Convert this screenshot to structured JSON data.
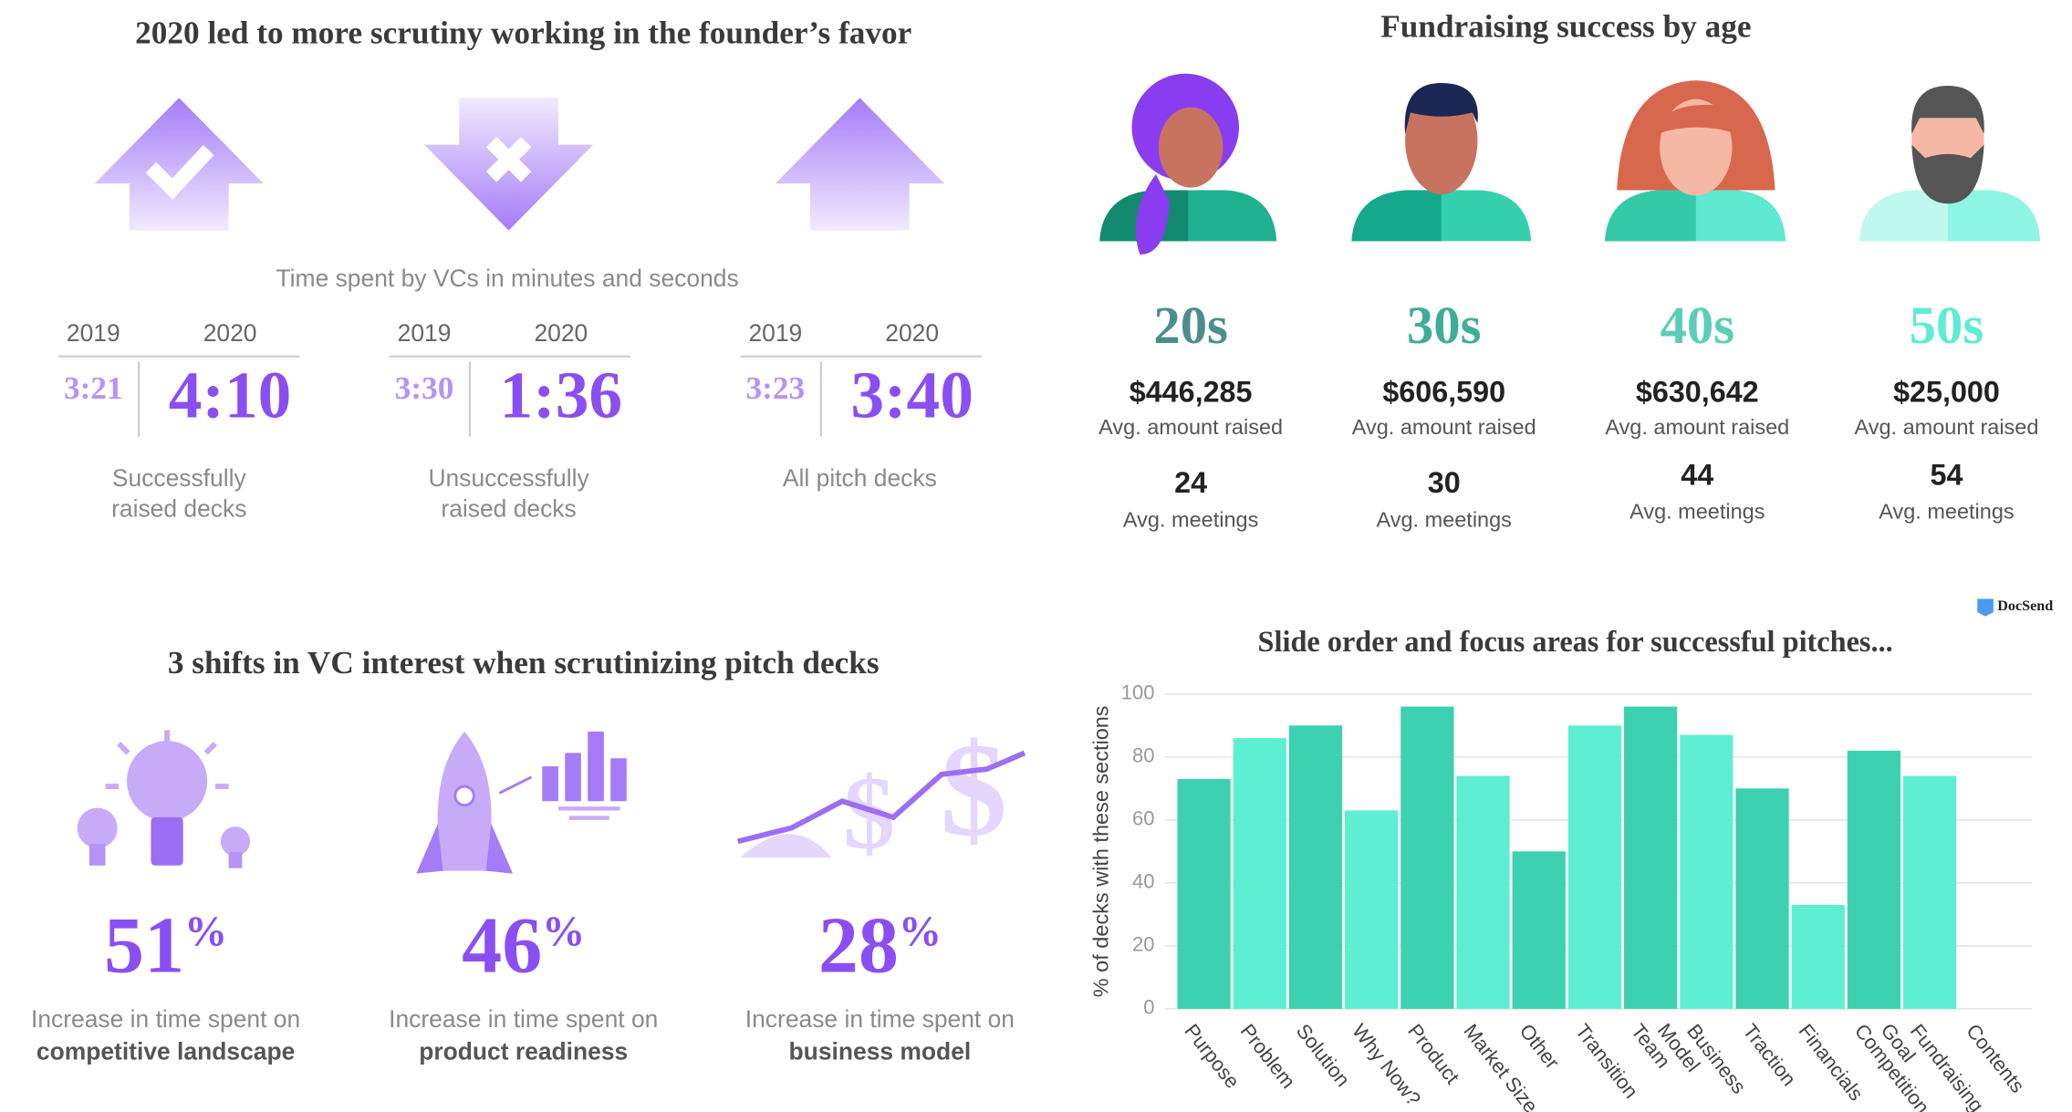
{
  "scrutiny": {
    "title": "2020 led to more scrutiny working in the founder’s favor",
    "subtitle": "Time spent by VCs in minutes and seconds",
    "groups": [
      {
        "year_a": "2019",
        "year_b": "2020",
        "time_a": "3:21",
        "time_b": "4:10",
        "label": [
          "Successfully",
          "raised decks"
        ]
      },
      {
        "year_a": "2019",
        "year_b": "2020",
        "time_a": "3:30",
        "time_b": "1:36",
        "label": [
          "Unsuccessfully",
          "raised decks"
        ]
      },
      {
        "year_a": "2019",
        "year_b": "2020",
        "time_a": "3:23",
        "time_b": "3:40",
        "label": [
          "All pitch decks"
        ]
      }
    ]
  },
  "ages": {
    "title": "Fundraising success by age",
    "groups": [
      {
        "age": "20s",
        "amount": "$446,285",
        "amount_label": "Avg. amount raised",
        "meetings": "24",
        "meetings_label": "Avg. meetings"
      },
      {
        "age": "30s",
        "amount": "$606,590",
        "amount_label": "Avg. amount raised",
        "meetings": "30",
        "meetings_label": "Avg. meetings"
      },
      {
        "age": "40s",
        "amount": "$630,642",
        "amount_label": "Avg. amount raised",
        "meetings": "44",
        "meetings_label": "Avg. meetings"
      },
      {
        "age": "50s",
        "amount": "$25,000",
        "amount_label": "Avg. amount raised",
        "meetings": "54",
        "meetings_label": "Avg. meetings"
      }
    ]
  },
  "shifts": {
    "title": "3 shifts in VC interest when scrutinizing pitch decks",
    "items": [
      {
        "value": "51",
        "unit": "%",
        "text": "Increase in time spent on",
        "focus": "competitive landscape"
      },
      {
        "value": "46",
        "unit": "%",
        "text": "Increase in time spent on",
        "focus": "product readiness"
      },
      {
        "value": "28",
        "unit": "%",
        "text": "Increase in time spent on",
        "focus": "business model"
      }
    ]
  },
  "logo": "DocSend",
  "chart_data": {
    "type": "bar",
    "title": "Slide order and focus areas for successful pitches...",
    "y_label": "% of decks with these sections",
    "categories": [
      "Purpose",
      "Problem",
      "Solution",
      "Why Now?",
      "Product",
      "Market Size",
      "Other",
      "Transition",
      "Team",
      "Business Model",
      "Traction",
      "Financials",
      "Competition",
      "Fundraising Goal",
      "Contents"
    ],
    "values": [
      73,
      86,
      90,
      63,
      96,
      74,
      50,
      90,
      96,
      87,
      70,
      33,
      82,
      74,
      0
    ],
    "colors": [
      "#3dd1b0",
      "#5eeed2"
    ],
    "ylim": [
      0,
      100
    ],
    "yticks": [
      0,
      20,
      40,
      60,
      80,
      100
    ],
    "grid": true
  }
}
